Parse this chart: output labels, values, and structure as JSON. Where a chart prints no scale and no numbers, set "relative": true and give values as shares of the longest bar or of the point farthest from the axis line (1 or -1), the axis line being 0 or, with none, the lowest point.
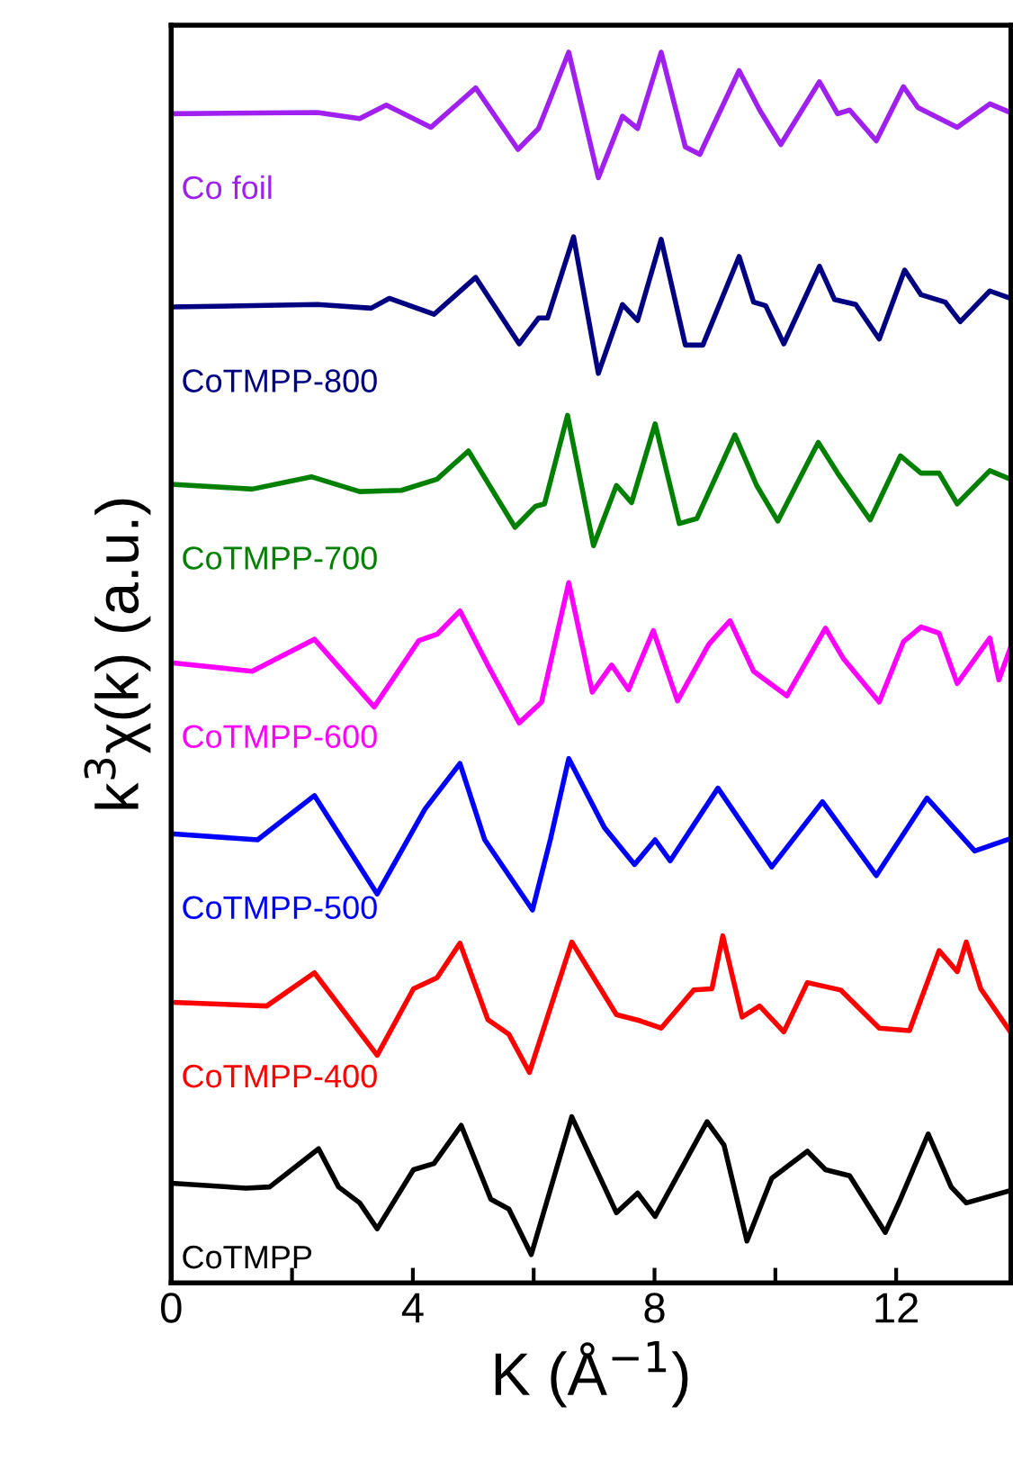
{
  "chart_data": {
    "type": "line",
    "relative": true,
    "xlabel": "K (Å$^{−1}$)",
    "ylabel": "k$^{3}$χ(k) (a.u.)",
    "xlim": [
      0,
      13.9
    ],
    "xticks": [
      0,
      {
        "value": 2,
        "label": null
      },
      4,
      {
        "value": 6,
        "label": null
      },
      8,
      {
        "value": 10,
        "label": null
      },
      12
    ],
    "grid": false,
    "legend": false,
    "marker": "none",
    "line_style": "solid",
    "tick_labels": "x",
    "series": [
      {
        "name": "Co foil",
        "color": "#a020f0",
        "x": [
          0,
          2.42,
          3.12,
          3.56,
          4.3,
          5.04,
          5.74,
          6.08,
          6.58,
          7.07,
          7.47,
          7.72,
          8.11,
          8.51,
          8.75,
          9.4,
          9.74,
          10.09,
          10.73,
          11.03,
          11.23,
          11.67,
          12.12,
          12.36,
          13.01,
          13.55,
          13.89
        ],
        "values": [
          0.95,
          0.951,
          0.946,
          0.957,
          0.939,
          0.971,
          0.921,
          0.938,
          1.0,
          0.898,
          0.948,
          0.938,
          1.0,
          0.923,
          0.917,
          0.985,
          0.953,
          0.925,
          0.976,
          0.95,
          0.953,
          0.928,
          0.972,
          0.955,
          0.939,
          0.958,
          0.951
        ]
      },
      {
        "name": "CoTMPP-800",
        "color": "#000080",
        "x": [
          0,
          2.42,
          3.31,
          3.61,
          4.35,
          5.04,
          5.76,
          6.08,
          6.23,
          6.66,
          7.07,
          7.47,
          7.72,
          8.11,
          8.51,
          8.8,
          9.4,
          9.64,
          9.84,
          10.14,
          10.73,
          10.98,
          11.33,
          11.72,
          12.14,
          12.41,
          12.81,
          13.06,
          13.55,
          13.89
        ],
        "values": [
          0.793,
          0.795,
          0.792,
          0.8,
          0.787,
          0.817,
          0.763,
          0.784,
          0.784,
          0.85,
          0.739,
          0.795,
          0.782,
          0.848,
          0.762,
          0.762,
          0.834,
          0.797,
          0.794,
          0.763,
          0.826,
          0.799,
          0.795,
          0.767,
          0.823,
          0.803,
          0.797,
          0.781,
          0.806,
          0.8
        ]
      },
      {
        "name": "CoTMPP-700",
        "color": "#008000",
        "x": [
          0,
          1.34,
          2.32,
          3.12,
          3.81,
          4.4,
          4.92,
          5.69,
          6.03,
          6.18,
          6.56,
          6.99,
          7.37,
          7.62,
          8.01,
          8.41,
          8.7,
          9.33,
          9.69,
          10.04,
          10.71,
          11.03,
          11.57,
          12.07,
          12.41,
          12.71,
          13.01,
          13.55,
          13.89
        ],
        "values": [
          0.649,
          0.645,
          0.655,
          0.643,
          0.644,
          0.653,
          0.676,
          0.614,
          0.631,
          0.633,
          0.705,
          0.599,
          0.648,
          0.634,
          0.698,
          0.617,
          0.621,
          0.689,
          0.648,
          0.619,
          0.683,
          0.658,
          0.62,
          0.672,
          0.658,
          0.658,
          0.633,
          0.66,
          0.653
        ]
      },
      {
        "name": "CoTMPP-600",
        "color": "#ff00ff",
        "x": [
          0,
          1.34,
          2.37,
          3.36,
          4.1,
          4.4,
          4.78,
          5.24,
          5.76,
          6.13,
          6.58,
          6.97,
          7.29,
          7.57,
          7.98,
          8.38,
          8.9,
          9.25,
          9.64,
          10.19,
          10.83,
          11.13,
          11.72,
          12.12,
          12.41,
          12.71,
          13.01,
          13.55,
          13.7,
          13.89
        ],
        "values": [
          0.504,
          0.497,
          0.523,
          0.468,
          0.522,
          0.527,
          0.546,
          0.502,
          0.455,
          0.472,
          0.569,
          0.48,
          0.502,
          0.482,
          0.53,
          0.473,
          0.519,
          0.538,
          0.497,
          0.477,
          0.532,
          0.507,
          0.472,
          0.521,
          0.533,
          0.528,
          0.487,
          0.524,
          0.49,
          0.516
        ]
      },
      {
        "name": "CoTMPP-500",
        "color": "#0000ff",
        "x": [
          0,
          1.43,
          2.37,
          3.41,
          4.2,
          4.78,
          5.19,
          5.98,
          6.28,
          6.58,
          7.17,
          7.67,
          8.01,
          8.26,
          9.05,
          9.94,
          10.78,
          11.67,
          12.51,
          13.3,
          13.89
        ],
        "values": [
          0.365,
          0.36,
          0.396,
          0.316,
          0.385,
          0.422,
          0.36,
          0.303,
          0.361,
          0.426,
          0.37,
          0.34,
          0.36,
          0.343,
          0.402,
          0.338,
          0.391,
          0.331,
          0.394,
          0.351,
          0.361
        ]
      },
      {
        "name": "CoTMPP-400",
        "color": "#ff0000",
        "x": [
          0,
          1.58,
          2.37,
          3.41,
          4.01,
          4.4,
          4.78,
          5.24,
          5.59,
          5.93,
          6.63,
          7.37,
          7.76,
          8.11,
          8.65,
          8.95,
          9.13,
          9.45,
          9.74,
          10.14,
          10.53,
          11.08,
          11.72,
          12.22,
          12.71,
          13.01,
          13.16,
          13.4,
          13.89
        ],
        "values": [
          0.228,
          0.225,
          0.252,
          0.185,
          0.239,
          0.248,
          0.276,
          0.214,
          0.202,
          0.171,
          0.277,
          0.218,
          0.213,
          0.207,
          0.238,
          0.239,
          0.282,
          0.216,
          0.225,
          0.204,
          0.244,
          0.238,
          0.207,
          0.205,
          0.27,
          0.253,
          0.277,
          0.239,
          0.204
        ]
      },
      {
        "name": "CoTMPP",
        "color": "#000000",
        "x": [
          0,
          1.24,
          1.63,
          2.44,
          2.77,
          3.12,
          3.41,
          4.01,
          4.35,
          4.8,
          5.29,
          5.59,
          5.96,
          6.63,
          7.37,
          7.72,
          8.01,
          8.87,
          9.15,
          9.53,
          9.94,
          10.53,
          10.83,
          11.23,
          11.82,
          12.07,
          12.53,
          12.91,
          13.16,
          13.89
        ],
        "values": [
          0.081,
          0.077,
          0.078,
          0.109,
          0.078,
          0.065,
          0.044,
          0.092,
          0.097,
          0.128,
          0.068,
          0.06,
          0.023,
          0.135,
          0.057,
          0.073,
          0.054,
          0.131,
          0.112,
          0.034,
          0.085,
          0.107,
          0.092,
          0.087,
          0.041,
          0.068,
          0.121,
          0.078,
          0.065,
          0.075
        ]
      }
    ]
  }
}
